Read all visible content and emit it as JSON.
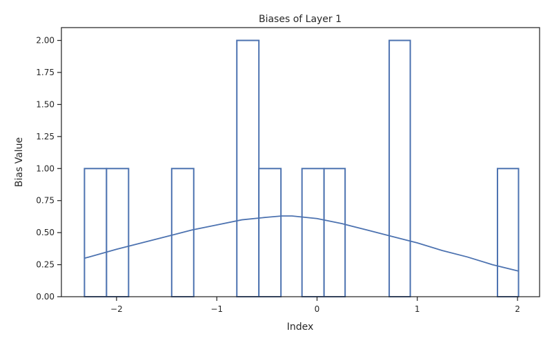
{
  "chart_data": {
    "type": "bar",
    "title": "Biases of Layer 1",
    "xlabel": "Index",
    "ylabel": "Bias Value",
    "xlim": [
      -2.55,
      2.22
    ],
    "ylim": [
      0,
      2.1
    ],
    "grid": false,
    "legend": "none",
    "colors": {
      "bar_edge": "#4c72b0",
      "bar_fill": "#ffffff",
      "curve": "#4c72b0",
      "axis": "#262626"
    },
    "x_ticks": [
      {
        "value": -2,
        "label": "−2"
      },
      {
        "value": -1,
        "label": "−1"
      },
      {
        "value": 0,
        "label": "0"
      },
      {
        "value": 1,
        "label": "1"
      },
      {
        "value": 2,
        "label": "2"
      }
    ],
    "y_ticks": [
      {
        "value": 0.0,
        "label": "0.00"
      },
      {
        "value": 0.25,
        "label": "0.25"
      },
      {
        "value": 0.5,
        "label": "0.50"
      },
      {
        "value": 0.75,
        "label": "0.75"
      },
      {
        "value": 1.0,
        "label": "1.00"
      },
      {
        "value": 1.25,
        "label": "1.25"
      },
      {
        "value": 1.5,
        "label": "1.50"
      },
      {
        "value": 1.75,
        "label": "1.75"
      },
      {
        "value": 2.0,
        "label": "2.00"
      }
    ],
    "bins": [
      {
        "x0": -2.32,
        "x1": -2.1,
        "count": 1
      },
      {
        "x0": -2.1,
        "x1": -1.88,
        "count": 1
      },
      {
        "x0": -1.88,
        "x1": -1.66,
        "count": 0
      },
      {
        "x0": -1.66,
        "x1": -1.45,
        "count": 0
      },
      {
        "x0": -1.45,
        "x1": -1.23,
        "count": 1
      },
      {
        "x0": -1.23,
        "x1": -1.01,
        "count": 0
      },
      {
        "x0": -1.01,
        "x1": -0.8,
        "count": 0
      },
      {
        "x0": -0.8,
        "x1": -0.58,
        "count": 2
      },
      {
        "x0": -0.58,
        "x1": -0.36,
        "count": 1
      },
      {
        "x0": -0.36,
        "x1": -0.15,
        "count": 0
      },
      {
        "x0": -0.15,
        "x1": 0.07,
        "count": 1
      },
      {
        "x0": 0.07,
        "x1": 0.28,
        "count": 1
      },
      {
        "x0": 0.28,
        "x1": 0.5,
        "count": 0
      },
      {
        "x0": 0.5,
        "x1": 0.72,
        "count": 0
      },
      {
        "x0": 0.72,
        "x1": 0.93,
        "count": 2
      },
      {
        "x0": 0.93,
        "x1": 1.15,
        "count": 0
      },
      {
        "x0": 1.15,
        "x1": 1.37,
        "count": 0
      },
      {
        "x0": 1.37,
        "x1": 1.58,
        "count": 0
      },
      {
        "x0": 1.58,
        "x1": 1.8,
        "count": 0
      },
      {
        "x0": 1.8,
        "x1": 2.01,
        "count": 1
      }
    ],
    "curve": {
      "x": [
        -2.32,
        -2.0,
        -1.75,
        -1.5,
        -1.25,
        -1.0,
        -0.75,
        -0.5,
        -0.35,
        -0.25,
        0.0,
        0.25,
        0.5,
        0.75,
        1.0,
        1.25,
        1.5,
        1.75,
        2.01
      ],
      "y": [
        0.3,
        0.37,
        0.42,
        0.47,
        0.52,
        0.56,
        0.6,
        0.62,
        0.63,
        0.63,
        0.61,
        0.57,
        0.52,
        0.47,
        0.42,
        0.36,
        0.31,
        0.25,
        0.2
      ]
    }
  }
}
